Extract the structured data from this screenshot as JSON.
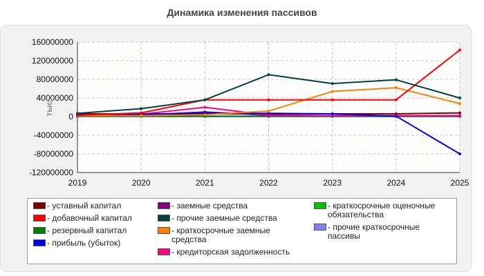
{
  "chart_data": {
    "type": "line",
    "title": "Динамика изменения пассивов",
    "ylabel": "тыс.",
    "xlabel": "",
    "x": [
      "2019",
      "2020",
      "2021",
      "2022",
      "2023",
      "2024",
      "2025"
    ],
    "ylim": [
      -120000000,
      160000000
    ],
    "yticks": [
      160000000,
      120000000,
      80000000,
      40000000,
      0,
      -40000000,
      -80000000,
      -120000000
    ],
    "grid": true,
    "legend_position": "bottom",
    "series": [
      {
        "name": "- уставный капитал",
        "color": "#800000",
        "values": [
          6000000,
          6000000,
          6000000,
          6000000,
          6000000,
          6000000,
          8000000
        ]
      },
      {
        "name": "- добавочный капитал",
        "color": "#ff0000",
        "values": [
          3000000,
          8000000,
          36000000,
          36000000,
          36000000,
          36000000,
          143000000
        ]
      },
      {
        "name": "- резервный капитал",
        "color": "#008000",
        "values": [
          1000000,
          1000000,
          1000000,
          1000000,
          1000000,
          1000000,
          1000000
        ]
      },
      {
        "name": "- прибыль (убыток)",
        "color": "#0000e0",
        "values": [
          4000000,
          5000000,
          8000000,
          7000000,
          6000000,
          1000000,
          -80000000
        ]
      },
      {
        "name": "- заемные средства",
        "color": "#800080",
        "values": [
          2000000,
          3000000,
          10000000,
          3000000,
          2000000,
          2000000,
          2000000
        ]
      },
      {
        "name": "- прочие заемные средства",
        "color": "#004040",
        "values": [
          7000000,
          17000000,
          36000000,
          90000000,
          71000000,
          79000000,
          40000000
        ]
      },
      {
        "name": "- краткосрочные заемные средства",
        "color": "#ff8000",
        "values": [
          2000000,
          2000000,
          4000000,
          12000000,
          54000000,
          62000000,
          28000000
        ]
      },
      {
        "name": "- кредиторская задолженность",
        "color": "#ff0080",
        "values": [
          3000000,
          5000000,
          20000000,
          3000000,
          2000000,
          2000000,
          2000000
        ]
      },
      {
        "name": "- краткосрочные оценочные обязательства",
        "color": "#00c000",
        "values": [
          0,
          0,
          0,
          0,
          0,
          0,
          0
        ]
      },
      {
        "name": "- прочие краткосрочные пассивы",
        "color": "#8080ff",
        "values": [
          0,
          0,
          0,
          0,
          0,
          0,
          0
        ]
      }
    ]
  },
  "legend": {
    "columns": [
      [
        0,
        1,
        2,
        3
      ],
      [
        4,
        5,
        6,
        7
      ],
      [
        8,
        9
      ]
    ],
    "labels": [
      [
        "- уставный капитал"
      ],
      [
        "- добавочный капитал"
      ],
      [
        "- резервный капитал"
      ],
      [
        "- прибыль (убыток)"
      ],
      [
        "- заемные средства"
      ],
      [
        "- прочие заемные средства"
      ],
      [
        "- краткосрочные заемные",
        "средства"
      ],
      [
        "- кредиторская задолженность"
      ],
      [
        "- краткосрочные оценочные",
        "обязательства"
      ],
      [
        "- прочие краткосрочные",
        "пассивы"
      ]
    ]
  }
}
